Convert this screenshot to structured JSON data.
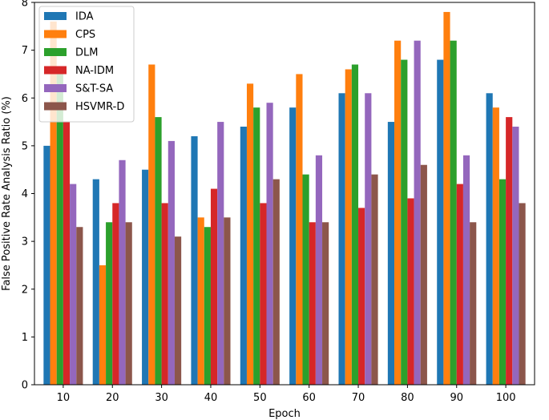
{
  "chart_data": {
    "type": "bar",
    "title": "",
    "xlabel": "Epoch",
    "ylabel": "False Positive Rate Analysis Ratio (%)",
    "ylim": [
      0,
      8
    ],
    "yticks": [
      "0",
      "1",
      "2",
      "3",
      "4",
      "5",
      "6",
      "7",
      "8"
    ],
    "categories": [
      "10",
      "20",
      "30",
      "40",
      "50",
      "60",
      "70",
      "80",
      "90",
      "100"
    ],
    "grid": false,
    "legend_position": "top-left",
    "series": [
      {
        "name": "IDA",
        "color": "#1f77b4",
        "values": [
          5.0,
          4.3,
          4.5,
          5.2,
          5.4,
          5.8,
          6.1,
          5.5,
          6.8,
          6.1
        ]
      },
      {
        "name": "CPS",
        "color": "#ff7f0e",
        "values": [
          7.6,
          2.5,
          6.7,
          3.5,
          6.3,
          6.5,
          6.6,
          7.2,
          7.8,
          5.8
        ]
      },
      {
        "name": "DLM",
        "color": "#2ca02c",
        "values": [
          6.5,
          3.4,
          5.6,
          3.3,
          5.8,
          4.4,
          6.7,
          6.8,
          7.2,
          4.3
        ]
      },
      {
        "name": "NA-IDM",
        "color": "#d62728",
        "values": [
          5.5,
          3.8,
          3.8,
          4.1,
          3.8,
          3.4,
          3.7,
          3.9,
          4.2,
          5.6
        ]
      },
      {
        "name": "S&T-SA",
        "color": "#9467bd",
        "values": [
          4.2,
          4.7,
          5.1,
          5.5,
          5.9,
          4.8,
          6.1,
          7.2,
          4.8,
          5.4
        ]
      },
      {
        "name": "HSVMR-D",
        "color": "#8c564b",
        "values": [
          3.3,
          3.4,
          3.1,
          3.5,
          4.3,
          3.4,
          4.4,
          4.6,
          3.4,
          3.8
        ]
      }
    ]
  }
}
